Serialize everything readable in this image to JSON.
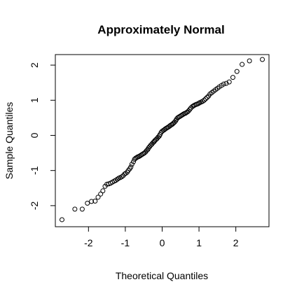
{
  "chart_data": {
    "type": "scatter",
    "title": "Approximately Normal",
    "xlabel": "Theoretical Quantiles",
    "ylabel": "Sample Quantiles",
    "xlim": [
      -2.9,
      2.9
    ],
    "ylim": [
      -2.6,
      2.3
    ],
    "xticks": [
      -2,
      -1,
      0,
      1,
      2
    ],
    "xtick_labels": [
      "-2",
      "-1",
      "0",
      "1",
      "2"
    ],
    "yticks": [
      -2,
      -1,
      0,
      1,
      2
    ],
    "ytick_labels": [
      "-2",
      "-1",
      "0",
      "1",
      "2"
    ],
    "grid": false,
    "marker": "open-circle",
    "point_color": "#000000",
    "points": [
      [
        -2.72,
        -2.4
      ],
      [
        -2.37,
        -2.1
      ],
      [
        -2.17,
        -2.1
      ],
      [
        -2.03,
        -1.93
      ],
      [
        -1.92,
        -1.88
      ],
      [
        -1.82,
        -1.87
      ],
      [
        -1.74,
        -1.76
      ],
      [
        -1.67,
        -1.67
      ],
      [
        -1.61,
        -1.58
      ],
      [
        -1.55,
        -1.45
      ],
      [
        -1.5,
        -1.39
      ],
      [
        -1.45,
        -1.38
      ],
      [
        -1.4,
        -1.36
      ],
      [
        -1.35,
        -1.33
      ],
      [
        -1.3,
        -1.3
      ],
      [
        -1.26,
        -1.28
      ],
      [
        -1.22,
        -1.25
      ],
      [
        -1.18,
        -1.22
      ],
      [
        -1.14,
        -1.2
      ],
      [
        -1.1,
        -1.18
      ],
      [
        -1.06,
        -1.15
      ],
      [
        -1.02,
        -1.1
      ],
      [
        -0.99,
        -1.08
      ],
      [
        -0.95,
        -1.05
      ],
      [
        -0.92,
        -1.0
      ],
      [
        -0.88,
        -0.95
      ],
      [
        -0.85,
        -0.9
      ],
      [
        -0.82,
        -0.82
      ],
      [
        -0.78,
        -0.75
      ],
      [
        -0.75,
        -0.68
      ],
      [
        -0.72,
        -0.65
      ],
      [
        -0.69,
        -0.63
      ],
      [
        -0.66,
        -0.61
      ],
      [
        -0.63,
        -0.6
      ],
      [
        -0.6,
        -0.58
      ],
      [
        -0.57,
        -0.56
      ],
      [
        -0.54,
        -0.54
      ],
      [
        -0.51,
        -0.52
      ],
      [
        -0.48,
        -0.5
      ],
      [
        -0.45,
        -0.47
      ],
      [
        -0.42,
        -0.43
      ],
      [
        -0.39,
        -0.4
      ],
      [
        -0.37,
        -0.36
      ],
      [
        -0.34,
        -0.32
      ],
      [
        -0.31,
        -0.28
      ],
      [
        -0.28,
        -0.25
      ],
      [
        -0.25,
        -0.21
      ],
      [
        -0.22,
        -0.18
      ],
      [
        -0.2,
        -0.15
      ],
      [
        -0.17,
        -0.12
      ],
      [
        -0.14,
        -0.09
      ],
      [
        -0.11,
        -0.05
      ],
      [
        -0.08,
        -0.02
      ],
      [
        -0.06,
        0.02
      ],
      [
        -0.03,
        0.08
      ],
      [
        0.0,
        0.12
      ],
      [
        0.03,
        0.14
      ],
      [
        0.06,
        0.16
      ],
      [
        0.08,
        0.18
      ],
      [
        0.11,
        0.2
      ],
      [
        0.14,
        0.22
      ],
      [
        0.17,
        0.24
      ],
      [
        0.2,
        0.26
      ],
      [
        0.22,
        0.28
      ],
      [
        0.25,
        0.3
      ],
      [
        0.28,
        0.32
      ],
      [
        0.31,
        0.35
      ],
      [
        0.34,
        0.38
      ],
      [
        0.37,
        0.42
      ],
      [
        0.39,
        0.46
      ],
      [
        0.42,
        0.5
      ],
      [
        0.45,
        0.52
      ],
      [
        0.48,
        0.54
      ],
      [
        0.51,
        0.56
      ],
      [
        0.54,
        0.58
      ],
      [
        0.57,
        0.6
      ],
      [
        0.6,
        0.62
      ],
      [
        0.63,
        0.63
      ],
      [
        0.66,
        0.65
      ],
      [
        0.69,
        0.67
      ],
      [
        0.72,
        0.7
      ],
      [
        0.75,
        0.74
      ],
      [
        0.78,
        0.78
      ],
      [
        0.82,
        0.82
      ],
      [
        0.85,
        0.84
      ],
      [
        0.88,
        0.86
      ],
      [
        0.92,
        0.88
      ],
      [
        0.95,
        0.89
      ],
      [
        0.99,
        0.91
      ],
      [
        1.02,
        0.93
      ],
      [
        1.06,
        0.95
      ],
      [
        1.1,
        0.97
      ],
      [
        1.14,
        1.0
      ],
      [
        1.18,
        1.04
      ],
      [
        1.22,
        1.08
      ],
      [
        1.26,
        1.12
      ],
      [
        1.3,
        1.18
      ],
      [
        1.35,
        1.22
      ],
      [
        1.4,
        1.26
      ],
      [
        1.45,
        1.3
      ],
      [
        1.5,
        1.34
      ],
      [
        1.55,
        1.38
      ],
      [
        1.61,
        1.42
      ],
      [
        1.67,
        1.46
      ],
      [
        1.74,
        1.48
      ],
      [
        1.82,
        1.52
      ],
      [
        1.92,
        1.65
      ],
      [
        2.03,
        1.82
      ],
      [
        2.17,
        2.02
      ],
      [
        2.37,
        2.12
      ],
      [
        2.72,
        2.16
      ]
    ]
  }
}
